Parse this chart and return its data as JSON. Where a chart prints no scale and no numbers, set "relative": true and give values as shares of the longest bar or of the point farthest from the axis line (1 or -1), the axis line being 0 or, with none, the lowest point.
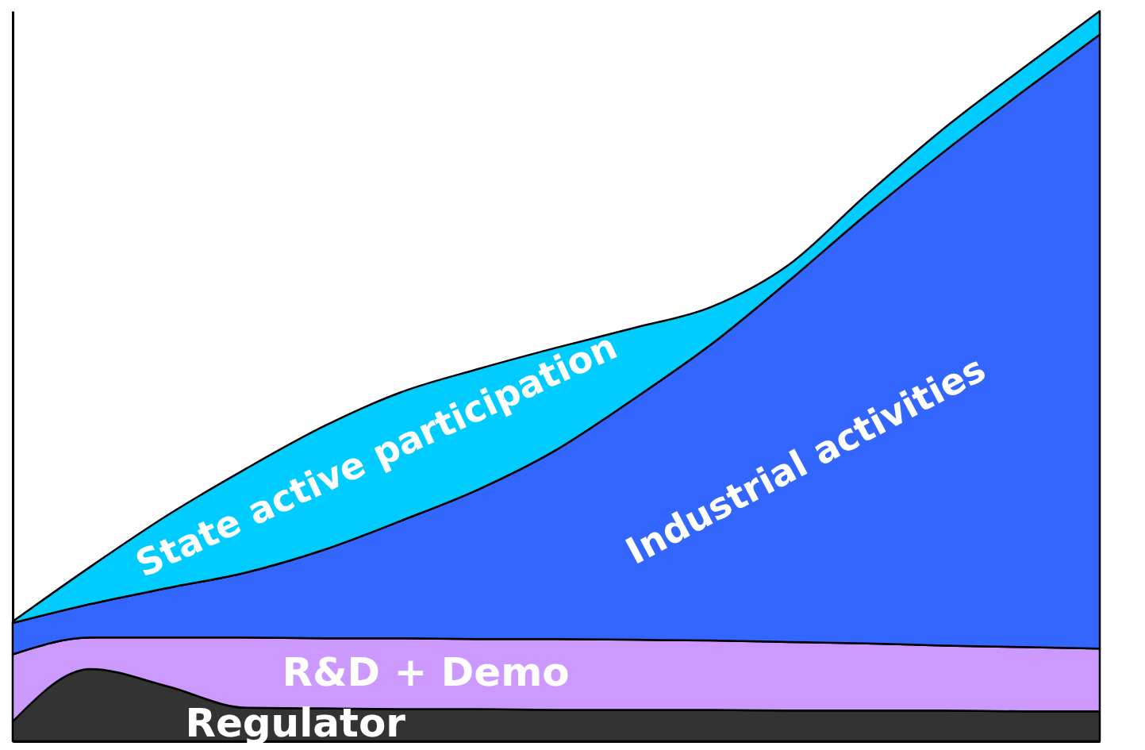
{
  "chart_data": {
    "type": "area",
    "stacked": true,
    "relative": true,
    "legend": false,
    "categories": [
      null,
      null,
      null,
      null,
      null,
      null,
      null,
      null,
      null,
      null,
      null,
      null,
      null,
      null,
      null
    ],
    "series": [
      {
        "name": "Regulator",
        "color": "#333333",
        "values": [
          0.027,
          0.099,
          0.075,
          0.046,
          0.045,
          0.044,
          0.044,
          0.043,
          0.043,
          0.043,
          0.042,
          0.042,
          0.042,
          0.041,
          0.041
        ]
      },
      {
        "name": "R&D + Demo",
        "color": "#cc99ff",
        "values": [
          0.092,
          0.043,
          0.067,
          0.096,
          0.096,
          0.097,
          0.096,
          0.097,
          0.096,
          0.095,
          0.094,
          0.092,
          0.089,
          0.088,
          0.086
        ]
      },
      {
        "name": "Industrial activities",
        "color": "#3366ff",
        "values": [
          0.043,
          0.046,
          0.068,
          0.089,
          0.121,
          0.161,
          0.205,
          0.259,
          0.33,
          0.406,
          0.495,
          0.588,
          0.677,
          0.76,
          0.841
        ]
      },
      {
        "name": "State active participation",
        "color": "#00ccff",
        "values": [
          0.002,
          0.051,
          0.1,
          0.142,
          0.169,
          0.176,
          0.165,
          0.14,
          0.097,
          0.051,
          0.022,
          0.027,
          0.032,
          0.032,
          0.032
        ]
      }
    ]
  }
}
